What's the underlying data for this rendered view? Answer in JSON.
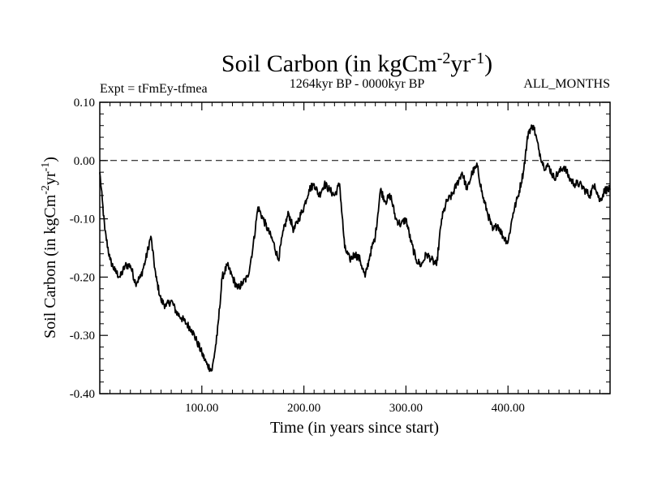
{
  "chart_data": {
    "type": "line",
    "title": "Soil Carbon (in kgCm",
    "title_sup1": "-2",
    "title_mid": "yr",
    "title_sup2": "-1",
    "title_end": ")",
    "subtitle": "1264kyr BP - 0000kyr BP",
    "left_label": "Expt = tFmEy-tfmea",
    "right_label": "ALL_MONTHS",
    "xlabel": "Time (in years since start)",
    "ylabel": "Soil Carbon (in kgCm",
    "ylabel_sup1": "-2",
    "ylabel_mid": "yr",
    "ylabel_sup2": "-1",
    "ylabel_end": ")",
    "xlim": [
      0,
      500
    ],
    "ylim": [
      -0.4,
      0.1
    ],
    "xticks": [
      100,
      200,
      300,
      400
    ],
    "xtick_labels": [
      "100.00",
      "200.00",
      "300.00",
      "400.00"
    ],
    "yticks": [
      0.1,
      0.0,
      -0.1,
      -0.2,
      -0.3,
      -0.4
    ],
    "ytick_labels": [
      "0.10",
      "0.00",
      "-0.10",
      "-0.20",
      "-0.30",
      "-0.40"
    ],
    "reference_line": 0.0,
    "series": [
      {
        "name": "Soil Carbon",
        "x": [
          0,
          5,
          10,
          15,
          20,
          25,
          30,
          35,
          40,
          45,
          50,
          55,
          60,
          65,
          70,
          75,
          80,
          85,
          90,
          95,
          100,
          105,
          110,
          115,
          120,
          125,
          130,
          135,
          140,
          145,
          150,
          155,
          160,
          165,
          170,
          175,
          180,
          185,
          190,
          195,
          200,
          205,
          210,
          215,
          220,
          225,
          230,
          235,
          240,
          245,
          250,
          255,
          260,
          265,
          270,
          275,
          280,
          285,
          290,
          295,
          300,
          305,
          310,
          315,
          320,
          325,
          330,
          335,
          340,
          345,
          350,
          355,
          360,
          365,
          370,
          375,
          380,
          385,
          390,
          395,
          400,
          405,
          410,
          415,
          420,
          425,
          430,
          435,
          440,
          445,
          450,
          455,
          460,
          465,
          470,
          475,
          480,
          485,
          490,
          495,
          500
        ],
        "values": [
          -0.02,
          -0.12,
          -0.17,
          -0.19,
          -0.2,
          -0.18,
          -0.18,
          -0.21,
          -0.2,
          -0.17,
          -0.13,
          -0.2,
          -0.24,
          -0.25,
          -0.24,
          -0.26,
          -0.27,
          -0.28,
          -0.29,
          -0.31,
          -0.33,
          -0.35,
          -0.36,
          -0.3,
          -0.2,
          -0.18,
          -0.2,
          -0.22,
          -0.21,
          -0.2,
          -0.15,
          -0.08,
          -0.1,
          -0.12,
          -0.14,
          -0.17,
          -0.12,
          -0.09,
          -0.12,
          -0.1,
          -0.08,
          -0.05,
          -0.04,
          -0.06,
          -0.04,
          -0.05,
          -0.06,
          -0.04,
          -0.15,
          -0.17,
          -0.16,
          -0.17,
          -0.2,
          -0.16,
          -0.13,
          -0.05,
          -0.07,
          -0.06,
          -0.1,
          -0.11,
          -0.1,
          -0.14,
          -0.17,
          -0.18,
          -0.16,
          -0.17,
          -0.18,
          -0.1,
          -0.07,
          -0.06,
          -0.04,
          -0.02,
          -0.05,
          -0.02,
          -0.01,
          -0.06,
          -0.09,
          -0.12,
          -0.11,
          -0.13,
          -0.14,
          -0.09,
          -0.06,
          -0.02,
          0.05,
          0.06,
          0.02,
          -0.01,
          -0.01,
          -0.03,
          -0.02,
          -0.01,
          -0.03,
          -0.04,
          -0.04,
          -0.05,
          -0.06,
          -0.04,
          -0.07,
          -0.05,
          -0.05
        ]
      }
    ]
  }
}
